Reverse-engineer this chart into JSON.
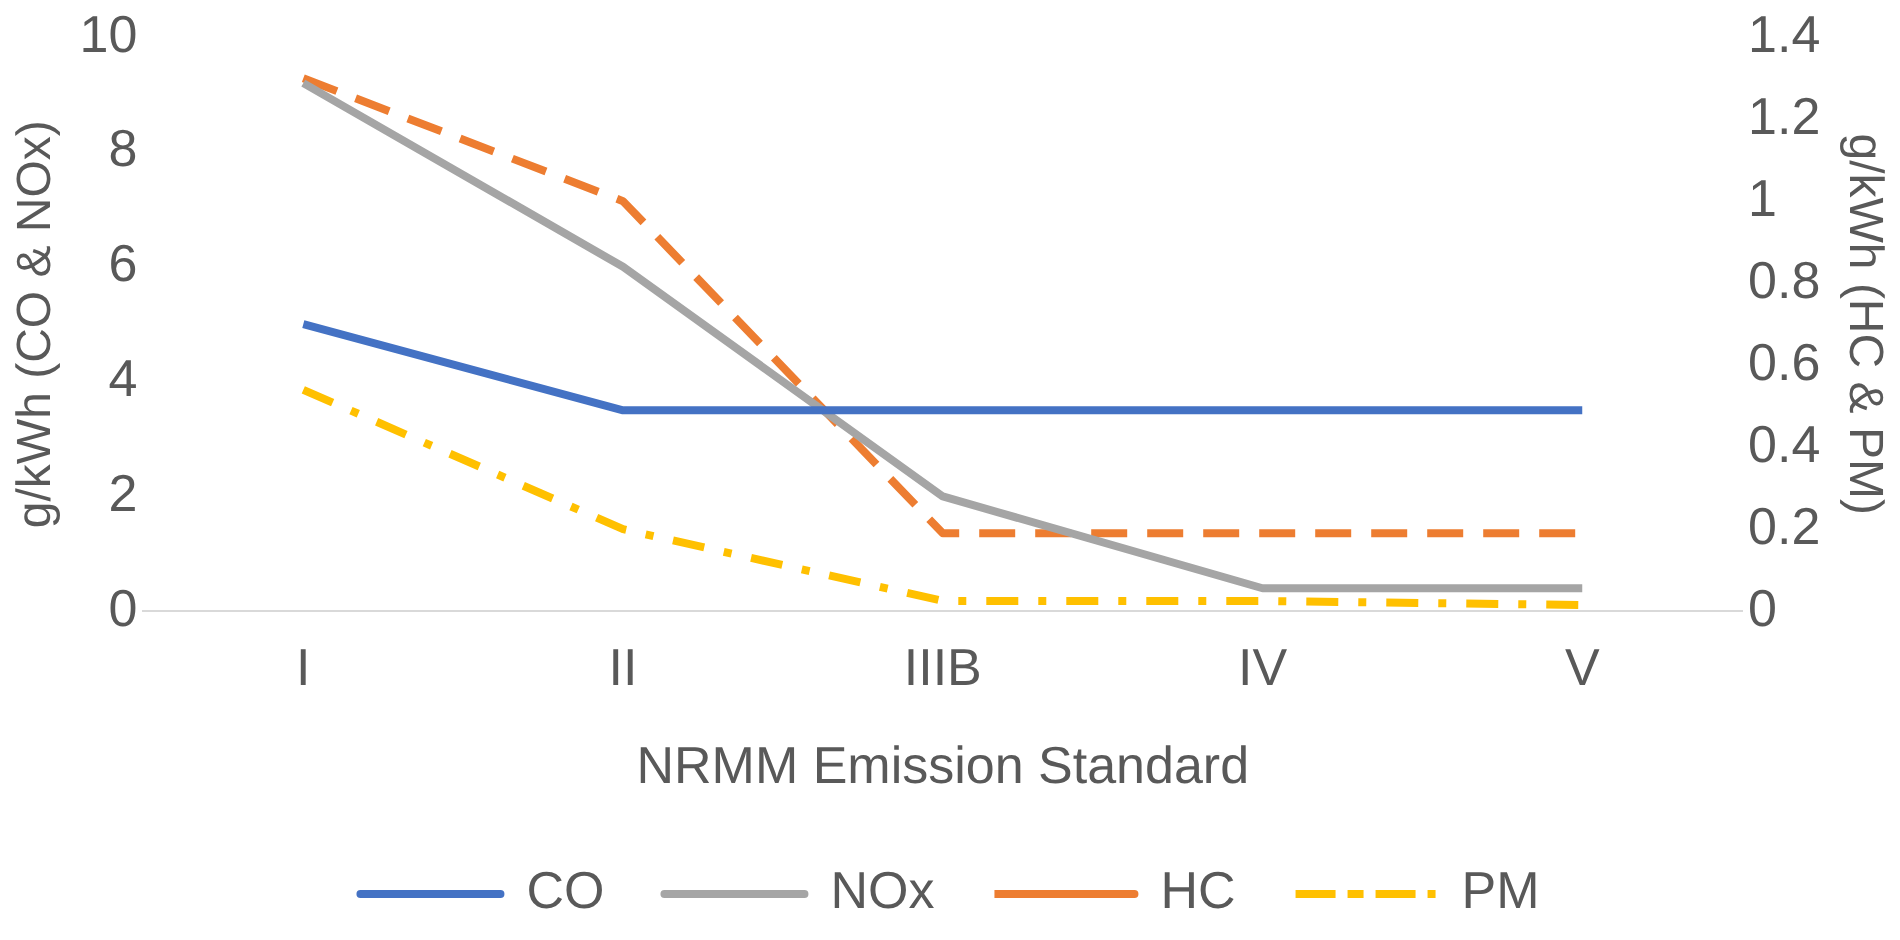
{
  "chart_data": {
    "type": "line",
    "xlabel": "NRMM Emission Standard",
    "ylabel": "g/kWh (CO & NOx)",
    "y2label": "g/kWh (HC & PM)",
    "categories": [
      "I",
      "II",
      "IIIB",
      "IV",
      "V"
    ],
    "series": [
      {
        "name": "CO",
        "color": "#4472c4",
        "line_style": "solid",
        "values": [
          5,
          3.5,
          3.5,
          3.5,
          3.5
        ]
      },
      {
        "name": "NOx",
        "color": "#a5a5a5",
        "line_style": "solid",
        "values": [
          9.2,
          6,
          2,
          0.4,
          0.4
        ]
      },
      {
        "name": "HC",
        "color": "#ed7d31",
        "line_style": "dashed",
        "axis": "y2",
        "values": [
          1.3,
          1.0,
          0.19,
          0.19,
          0.19
        ]
      },
      {
        "name": "PM",
        "color": "#ffc000",
        "line_style": "dashdot",
        "axis": "y2",
        "values": [
          0.54,
          0.2,
          0.025,
          0.025,
          0.015
        ]
      }
    ],
    "ylim": [
      0,
      10
    ],
    "yticks": [
      0,
      2,
      4,
      6,
      8,
      10
    ],
    "y2lim": [
      0,
      1.4
    ],
    "y2ticks": [
      0,
      0.2,
      0.4,
      0.6,
      0.8,
      1,
      1.2,
      1.4
    ],
    "grid": false,
    "legend": "bottom",
    "marker": "none"
  }
}
